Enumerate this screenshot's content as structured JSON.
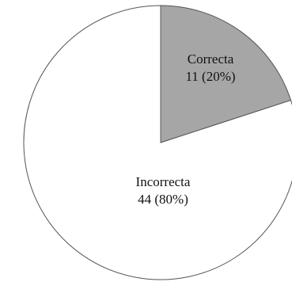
{
  "chart_data": {
    "type": "pie",
    "categories": [
      "Correcta",
      "Incorrecta"
    ],
    "values": [
      11,
      44
    ],
    "percent_labels": [
      "11 (20%)",
      "44 (80%)"
    ],
    "colors": [
      "#a6a6a6",
      "#ffffff"
    ],
    "outline_color": "#555555"
  }
}
